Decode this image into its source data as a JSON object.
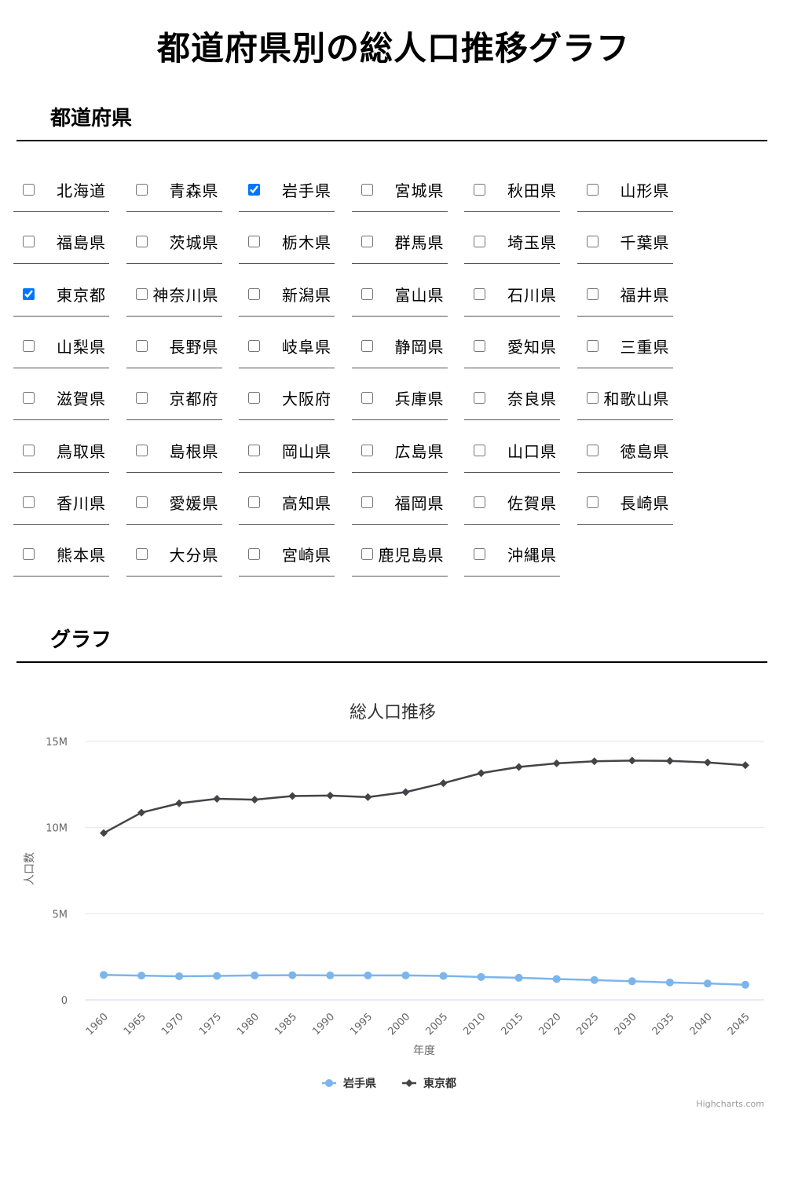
{
  "page_title": "都道府県別の総人口推移グラフ",
  "prefecture_section_title": "都道府県",
  "graph_section_title": "グラフ",
  "prefectures": [
    {
      "name": "北海道",
      "checked": false
    },
    {
      "name": "青森県",
      "checked": false
    },
    {
      "name": "岩手県",
      "checked": true
    },
    {
      "name": "宮城県",
      "checked": false
    },
    {
      "name": "秋田県",
      "checked": false
    },
    {
      "name": "山形県",
      "checked": false
    },
    {
      "name": "福島県",
      "checked": false
    },
    {
      "name": "茨城県",
      "checked": false
    },
    {
      "name": "栃木県",
      "checked": false
    },
    {
      "name": "群馬県",
      "checked": false
    },
    {
      "name": "埼玉県",
      "checked": false
    },
    {
      "name": "千葉県",
      "checked": false
    },
    {
      "name": "東京都",
      "checked": true
    },
    {
      "name": "神奈川県",
      "checked": false
    },
    {
      "name": "新潟県",
      "checked": false
    },
    {
      "name": "富山県",
      "checked": false
    },
    {
      "name": "石川県",
      "checked": false
    },
    {
      "name": "福井県",
      "checked": false
    },
    {
      "name": "山梨県",
      "checked": false
    },
    {
      "name": "長野県",
      "checked": false
    },
    {
      "name": "岐阜県",
      "checked": false
    },
    {
      "name": "静岡県",
      "checked": false
    },
    {
      "name": "愛知県",
      "checked": false
    },
    {
      "name": "三重県",
      "checked": false
    },
    {
      "name": "滋賀県",
      "checked": false
    },
    {
      "name": "京都府",
      "checked": false
    },
    {
      "name": "大阪府",
      "checked": false
    },
    {
      "name": "兵庫県",
      "checked": false
    },
    {
      "name": "奈良県",
      "checked": false
    },
    {
      "name": "和歌山県",
      "checked": false
    },
    {
      "name": "鳥取県",
      "checked": false
    },
    {
      "name": "島根県",
      "checked": false
    },
    {
      "name": "岡山県",
      "checked": false
    },
    {
      "name": "広島県",
      "checked": false
    },
    {
      "name": "山口県",
      "checked": false
    },
    {
      "name": "徳島県",
      "checked": false
    },
    {
      "name": "香川県",
      "checked": false
    },
    {
      "name": "愛媛県",
      "checked": false
    },
    {
      "name": "高知県",
      "checked": false
    },
    {
      "name": "福岡県",
      "checked": false
    },
    {
      "name": "佐賀県",
      "checked": false
    },
    {
      "name": "長崎県",
      "checked": false
    },
    {
      "name": "熊本県",
      "checked": false
    },
    {
      "name": "大分県",
      "checked": false
    },
    {
      "name": "宮崎県",
      "checked": false
    },
    {
      "name": "鹿児島県",
      "checked": false
    },
    {
      "name": "沖縄県",
      "checked": false
    }
  ],
  "chart_data": {
    "type": "line",
    "title": "総人口推移",
    "xlabel": "年度",
    "ylabel": "人口数",
    "x": [
      1960,
      1965,
      1970,
      1975,
      1980,
      1985,
      1990,
      1995,
      2000,
      2005,
      2010,
      2015,
      2020,
      2025,
      2030,
      2035,
      2040,
      2045
    ],
    "ylim": [
      0,
      15000000
    ],
    "yticks": [
      0,
      5000000,
      10000000,
      15000000
    ],
    "ytick_labels": [
      "0",
      "5M",
      "10M",
      "15M"
    ],
    "grid": true,
    "legend_position": "bottom-center",
    "credits": "Highcharts.com",
    "series": [
      {
        "name": "岩手県",
        "color": "#7cb5ec",
        "marker": "circle",
        "values": [
          1450000,
          1410000,
          1370000,
          1390000,
          1420000,
          1430000,
          1420000,
          1420000,
          1420000,
          1390000,
          1330000,
          1280000,
          1210000,
          1150000,
          1080000,
          1010000,
          950000,
          880000
        ]
      },
      {
        "name": "東京都",
        "color": "#434348",
        "marker": "diamond",
        "values": [
          9680000,
          10870000,
          11410000,
          11670000,
          11620000,
          11830000,
          11860000,
          11770000,
          12060000,
          12580000,
          13160000,
          13520000,
          13730000,
          13850000,
          13890000,
          13870000,
          13780000,
          13620000
        ]
      }
    ]
  }
}
